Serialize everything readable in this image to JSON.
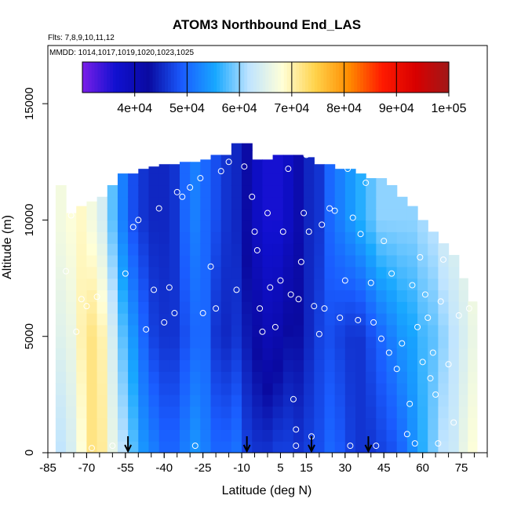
{
  "chart_data": {
    "type": "heatmap",
    "title": "ATOM3 Northbound End_LAS",
    "subtitle_flights": "Flts: 7,8,9,10,11,12",
    "subtitle_dates": "MMDD: 1014,1017,1019,1020,1023,1025",
    "xlabel": "Latitude (deg N)",
    "ylabel": "Altitude (m)",
    "xlim": [
      -85,
      85
    ],
    "ylim": [
      0,
      17500
    ],
    "x_ticks": [
      -85,
      -70,
      -55,
      -40,
      -25,
      -10,
      5,
      15,
      30,
      45,
      60,
      75
    ],
    "y_ticks": [
      0,
      5000,
      10000,
      15000
    ],
    "colorbar": {
      "range": [
        30000,
        100000
      ],
      "ticks": [
        40000,
        50000,
        60000,
        70000,
        80000,
        90000,
        100000
      ],
      "tick_labels": [
        "4e+04",
        "5e+04",
        "6e+04",
        "7e+04",
        "8e+04",
        "9e+04",
        "1e+05"
      ],
      "colors": [
        "#7b1fe8",
        "#1010d0",
        "#0a0aa0",
        "#1a5cff",
        "#18a8ff",
        "#bfe4ff",
        "#ffffd8",
        "#ffd24a",
        "#ff8c00",
        "#ff1a00",
        "#d80000",
        "#a01818"
      ]
    },
    "columns": [
      {
        "lat": -80,
        "zmax": 11500,
        "profile": [
          [
            0,
            62000
          ],
          [
            5000,
            65000
          ],
          [
            10000,
            67000
          ]
        ]
      },
      {
        "lat": -76,
        "zmax": 10300,
        "profile": [
          [
            0,
            64000
          ],
          [
            5000,
            66000
          ],
          [
            10000,
            68000
          ]
        ]
      },
      {
        "lat": -72,
        "zmax": 10600,
        "profile": [
          [
            0,
            68000
          ],
          [
            5000,
            70000
          ],
          [
            10000,
            69000
          ]
        ]
      },
      {
        "lat": -68,
        "zmax": 10800,
        "profile": [
          [
            0,
            72000
          ],
          [
            5000,
            72000
          ],
          [
            10000,
            67000
          ]
        ]
      },
      {
        "lat": -64,
        "zmax": 11000,
        "profile": [
          [
            0,
            71000
          ],
          [
            5000,
            70000
          ],
          [
            10000,
            64000
          ]
        ]
      },
      {
        "lat": -60,
        "zmax": 11500,
        "profile": [
          [
            0,
            66000
          ],
          [
            5000,
            64000
          ],
          [
            10000,
            58000
          ]
        ]
      },
      {
        "lat": -56,
        "zmax": 12000,
        "profile": [
          [
            0,
            62000
          ],
          [
            5000,
            58000
          ],
          [
            10000,
            52000
          ]
        ]
      },
      {
        "lat": -52,
        "zmax": 12000,
        "profile": [
          [
            0,
            58000
          ],
          [
            5000,
            54000
          ],
          [
            10000,
            48000
          ]
        ]
      },
      {
        "lat": -48,
        "zmax": 12200,
        "profile": [
          [
            0,
            54000
          ],
          [
            5000,
            50000
          ],
          [
            10000,
            46000
          ]
        ]
      },
      {
        "lat": -44,
        "zmax": 12300,
        "profile": [
          [
            0,
            52000
          ],
          [
            5000,
            47000
          ],
          [
            10000,
            45000
          ]
        ]
      },
      {
        "lat": -40,
        "zmax": 12400,
        "profile": [
          [
            0,
            50000
          ],
          [
            5000,
            46000
          ],
          [
            10000,
            45000
          ]
        ]
      },
      {
        "lat": -36,
        "zmax": 12400,
        "profile": [
          [
            0,
            50000
          ],
          [
            5000,
            46000
          ],
          [
            10000,
            46000
          ]
        ]
      },
      {
        "lat": -32,
        "zmax": 12500,
        "profile": [
          [
            0,
            52000
          ],
          [
            5000,
            48000
          ],
          [
            10000,
            50000
          ]
        ]
      },
      {
        "lat": -28,
        "zmax": 12500,
        "profile": [
          [
            0,
            54000
          ],
          [
            5000,
            50000
          ],
          [
            10000,
            52000
          ]
        ]
      },
      {
        "lat": -24,
        "zmax": 12600,
        "profile": [
          [
            0,
            52000
          ],
          [
            5000,
            50000
          ],
          [
            10000,
            50000
          ]
        ]
      },
      {
        "lat": -20,
        "zmax": 12800,
        "profile": [
          [
            0,
            50000
          ],
          [
            5000,
            46000
          ],
          [
            10000,
            48000
          ]
        ]
      },
      {
        "lat": -16,
        "zmax": 12800,
        "profile": [
          [
            0,
            50000
          ],
          [
            5000,
            45000
          ],
          [
            10000,
            46000
          ]
        ]
      },
      {
        "lat": -12,
        "zmax": 13300,
        "profile": [
          [
            0,
            51000
          ],
          [
            5000,
            46000
          ],
          [
            10000,
            45000
          ]
        ]
      },
      {
        "lat": -8,
        "zmax": 13300,
        "profile": [
          [
            0,
            47000
          ],
          [
            5000,
            44000
          ],
          [
            10000,
            42000
          ]
        ]
      },
      {
        "lat": -4,
        "zmax": 12600,
        "profile": [
          [
            0,
            46000
          ],
          [
            5000,
            42000
          ],
          [
            10000,
            38000
          ]
        ]
      },
      {
        "lat": 0,
        "zmax": 12600,
        "profile": [
          [
            0,
            46000
          ],
          [
            5000,
            40000
          ],
          [
            10000,
            36000
          ]
        ]
      },
      {
        "lat": 4,
        "zmax": 12800,
        "profile": [
          [
            0,
            47000
          ],
          [
            5000,
            41000
          ],
          [
            10000,
            36000
          ]
        ]
      },
      {
        "lat": 8,
        "zmax": 12800,
        "profile": [
          [
            0,
            47000
          ],
          [
            5000,
            43000
          ],
          [
            10000,
            38000
          ]
        ]
      },
      {
        "lat": 12,
        "zmax": 12800,
        "profile": [
          [
            0,
            46000
          ],
          [
            5000,
            43000
          ],
          [
            10000,
            41000
          ]
        ]
      },
      {
        "lat": 16,
        "zmax": 12700,
        "profile": [
          [
            0,
            47000
          ],
          [
            5000,
            45000
          ],
          [
            10000,
            45000
          ]
        ]
      },
      {
        "lat": 20,
        "zmax": 12400,
        "profile": [
          [
            0,
            48000
          ],
          [
            5000,
            47000
          ],
          [
            10000,
            46000
          ]
        ]
      },
      {
        "lat": 24,
        "zmax": 12400,
        "profile": [
          [
            0,
            50000
          ],
          [
            5000,
            48000
          ],
          [
            10000,
            50000
          ]
        ]
      },
      {
        "lat": 28,
        "zmax": 12200,
        "profile": [
          [
            0,
            49000
          ],
          [
            5000,
            47000
          ],
          [
            10000,
            52000
          ]
        ]
      },
      {
        "lat": 32,
        "zmax": 12200,
        "profile": [
          [
            0,
            47000
          ],
          [
            5000,
            46000
          ],
          [
            10000,
            54000
          ]
        ]
      },
      {
        "lat": 36,
        "zmax": 12000,
        "profile": [
          [
            0,
            46000
          ],
          [
            5000,
            46000
          ],
          [
            10000,
            56000
          ]
        ]
      },
      {
        "lat": 40,
        "zmax": 11800,
        "profile": [
          [
            0,
            46000
          ],
          [
            5000,
            48000
          ],
          [
            10000,
            58000
          ]
        ]
      },
      {
        "lat": 44,
        "zmax": 11800,
        "profile": [
          [
            0,
            47000
          ],
          [
            5000,
            50000
          ],
          [
            10000,
            60000
          ]
        ]
      },
      {
        "lat": 48,
        "zmax": 11500,
        "profile": [
          [
            0,
            48000
          ],
          [
            5000,
            52000
          ],
          [
            10000,
            60000
          ]
        ]
      },
      {
        "lat": 52,
        "zmax": 11000,
        "profile": [
          [
            0,
            50000
          ],
          [
            5000,
            54000
          ],
          [
            10000,
            60000
          ]
        ]
      },
      {
        "lat": 56,
        "zmax": 10600,
        "profile": [
          [
            0,
            53000
          ],
          [
            5000,
            55000
          ],
          [
            10000,
            60000
          ]
        ]
      },
      {
        "lat": 60,
        "zmax": 10000,
        "profile": [
          [
            0,
            56000
          ],
          [
            5000,
            57000
          ],
          [
            10000,
            61000
          ]
        ]
      },
      {
        "lat": 64,
        "zmax": 9500,
        "profile": [
          [
            0,
            59000
          ],
          [
            5000,
            58000
          ],
          [
            10000,
            62000
          ]
        ]
      },
      {
        "lat": 68,
        "zmax": 9000,
        "profile": [
          [
            0,
            62000
          ],
          [
            5000,
            60000
          ],
          [
            10000,
            64000
          ]
        ]
      },
      {
        "lat": 72,
        "zmax": 8500,
        "profile": [
          [
            0,
            63000
          ],
          [
            5000,
            62000
          ],
          [
            10000,
            65000
          ]
        ]
      },
      {
        "lat": 76,
        "zmax": 7500,
        "profile": [
          [
            0,
            66000
          ],
          [
            5000,
            64000
          ],
          [
            10000,
            66000
          ]
        ]
      },
      {
        "lat": 79,
        "zmax": 6500,
        "profile": [
          [
            0,
            68000
          ],
          [
            5000,
            66000
          ],
          [
            10000,
            68000
          ]
        ]
      }
    ],
    "points": [
      [
        -78,
        7800
      ],
      [
        -76,
        10200
      ],
      [
        -74,
        5200
      ],
      [
        -72,
        6600
      ],
      [
        -70,
        6300
      ],
      [
        -68,
        200
      ],
      [
        -66,
        6700
      ],
      [
        -60,
        300
      ],
      [
        -55,
        7700
      ],
      [
        -52,
        9700
      ],
      [
        -50,
        10000
      ],
      [
        -47,
        5300
      ],
      [
        -44,
        7000
      ],
      [
        -42,
        10500
      ],
      [
        -40,
        5600
      ],
      [
        -38,
        7100
      ],
      [
        -36,
        6000
      ],
      [
        -35,
        11200
      ],
      [
        -33,
        11000
      ],
      [
        -30,
        11400
      ],
      [
        -28,
        300
      ],
      [
        -26,
        11800
      ],
      [
        -25,
        6000
      ],
      [
        -22,
        8000
      ],
      [
        -20,
        6200
      ],
      [
        -18,
        12100
      ],
      [
        -15,
        12500
      ],
      [
        -12,
        7000
      ],
      [
        -9,
        12300
      ],
      [
        -6,
        11000
      ],
      [
        -5,
        9500
      ],
      [
        -4,
        8700
      ],
      [
        -3,
        6200
      ],
      [
        -2,
        5200
      ],
      [
        0,
        10300
      ],
      [
        1,
        7100
      ],
      [
        3,
        5400
      ],
      [
        5,
        7400
      ],
      [
        6,
        9500
      ],
      [
        8,
        12200
      ],
      [
        9,
        6800
      ],
      [
        10,
        2300
      ],
      [
        11,
        1000
      ],
      [
        11,
        300
      ],
      [
        12,
        6600
      ],
      [
        13,
        8200
      ],
      [
        14,
        10300
      ],
      [
        15,
        12800
      ],
      [
        16,
        9500
      ],
      [
        17,
        700
      ],
      [
        18,
        6300
      ],
      [
        20,
        5100
      ],
      [
        21,
        9800
      ],
      [
        22,
        6200
      ],
      [
        24,
        10500
      ],
      [
        26,
        10400
      ],
      [
        28,
        5800
      ],
      [
        30,
        7400
      ],
      [
        31,
        12200
      ],
      [
        32,
        300
      ],
      [
        33,
        10100
      ],
      [
        35,
        5700
      ],
      [
        36,
        9400
      ],
      [
        38,
        11600
      ],
      [
        40,
        7300
      ],
      [
        41,
        5600
      ],
      [
        42,
        300
      ],
      [
        44,
        4900
      ],
      [
        45,
        9100
      ],
      [
        46,
        12300
      ],
      [
        47,
        4300
      ],
      [
        48,
        7700
      ],
      [
        50,
        3600
      ],
      [
        52,
        4700
      ],
      [
        54,
        800
      ],
      [
        55,
        2100
      ],
      [
        56,
        7200
      ],
      [
        57,
        400
      ],
      [
        58,
        5400
      ],
      [
        59,
        8400
      ],
      [
        60,
        3900
      ],
      [
        61,
        6800
      ],
      [
        62,
        5800
      ],
      [
        63,
        3200
      ],
      [
        64,
        4300
      ],
      [
        65,
        2500
      ],
      [
        66,
        400
      ],
      [
        67,
        6500
      ],
      [
        68,
        8300
      ],
      [
        70,
        3800
      ],
      [
        72,
        1300
      ],
      [
        74,
        5900
      ],
      [
        76,
        8700
      ],
      [
        78,
        6200
      ]
    ],
    "arrows_lat": [
      -54,
      -8,
      17,
      39
    ]
  }
}
